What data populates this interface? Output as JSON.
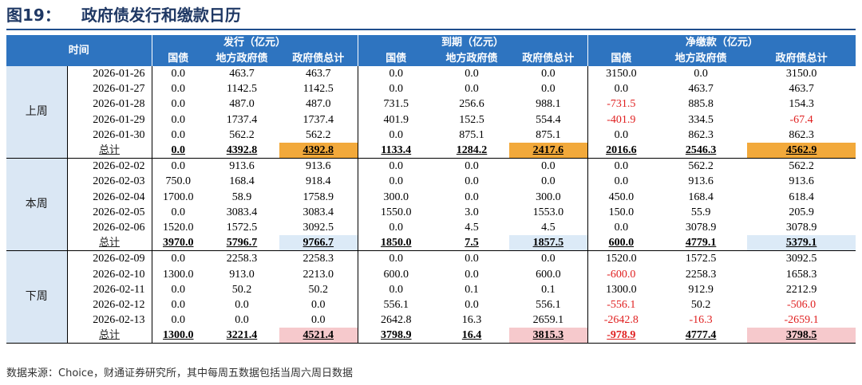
{
  "figure": {
    "number": "图19：",
    "title": "政府债发行和缴款日历"
  },
  "header": {
    "time": "时间",
    "groups": [
      "发行（亿元）",
      "到期（亿元）",
      "净缴款（亿元）"
    ],
    "sub": [
      "国债",
      "地方政府债",
      "政府债总计"
    ]
  },
  "colors": {
    "header_bg": "#2e74c0",
    "period_bg": "#dae7f4",
    "neg_text": "#e02020",
    "hl_orange": "#f2a93b",
    "hl_blue": "#dceaf7",
    "hl_pink": "#f6c9cc"
  },
  "weeks": [
    {
      "label": "上周",
      "rows": [
        [
          "2026-01-26",
          "0.0",
          "463.7",
          "463.7",
          "0.0",
          "0.0",
          "0.0",
          "3150.0",
          "0.0",
          "3150.0"
        ],
        [
          "2026-01-27",
          "0.0",
          "1142.5",
          "1142.5",
          "0.0",
          "0.0",
          "0.0",
          "0.0",
          "463.7",
          "463.7"
        ],
        [
          "2026-01-28",
          "0.0",
          "487.0",
          "487.0",
          "731.5",
          "256.6",
          "988.1",
          "-731.5",
          "885.8",
          "154.3"
        ],
        [
          "2026-01-29",
          "0.0",
          "1737.4",
          "1737.4",
          "401.9",
          "152.5",
          "554.4",
          "-401.9",
          "334.5",
          "-67.4"
        ],
        [
          "2026-01-30",
          "0.0",
          "562.2",
          "562.2",
          "0.0",
          "875.1",
          "875.1",
          "0.0",
          "862.3",
          "862.3"
        ]
      ],
      "total": [
        "总计",
        "0.0",
        "4392.8",
        "4392.8",
        "1133.4",
        "1284.2",
        "2417.6",
        "2016.6",
        "2546.3",
        "4562.9"
      ]
    },
    {
      "label": "本周",
      "rows": [
        [
          "2026-02-02",
          "0.0",
          "913.6",
          "913.6",
          "0.0",
          "0.0",
          "0.0",
          "0.0",
          "562.2",
          "562.2"
        ],
        [
          "2026-02-03",
          "750.0",
          "168.4",
          "918.4",
          "0.0",
          "0.0",
          "0.0",
          "0.0",
          "913.6",
          "913.6"
        ],
        [
          "2026-02-04",
          "1700.0",
          "58.9",
          "1758.9",
          "300.0",
          "0.0",
          "300.0",
          "450.0",
          "168.4",
          "618.4"
        ],
        [
          "2026-02-05",
          "0.0",
          "3083.4",
          "3083.4",
          "1550.0",
          "3.0",
          "1553.0",
          "150.0",
          "55.9",
          "205.9"
        ],
        [
          "2026-02-06",
          "1520.0",
          "1572.5",
          "3092.5",
          "0.0",
          "4.5",
          "4.5",
          "0.0",
          "3078.9",
          "3078.9"
        ]
      ],
      "total": [
        "总计",
        "3970.0",
        "5796.7",
        "9766.7",
        "1850.0",
        "7.5",
        "1857.5",
        "600.0",
        "4779.1",
        "5379.1"
      ]
    },
    {
      "label": "下周",
      "rows": [
        [
          "2026-02-09",
          "0.0",
          "2258.3",
          "2258.3",
          "0.0",
          "0.0",
          "0.0",
          "1520.0",
          "1572.5",
          "3092.5"
        ],
        [
          "2026-02-10",
          "1300.0",
          "913.0",
          "2213.0",
          "600.0",
          "0.0",
          "600.0",
          "-600.0",
          "2258.3",
          "1658.3"
        ],
        [
          "2026-02-11",
          "0.0",
          "50.2",
          "50.2",
          "0.0",
          "0.1",
          "0.1",
          "1300.0",
          "912.9",
          "2212.9"
        ],
        [
          "2026-02-12",
          "0.0",
          "0.0",
          "0.0",
          "556.1",
          "0.0",
          "556.1",
          "-556.1",
          "50.2",
          "-506.0"
        ],
        [
          "2026-02-13",
          "0.0",
          "0.0",
          "0.0",
          "2642.8",
          "16.3",
          "2659.1",
          "-2642.8",
          "-16.3",
          "-2659.1"
        ]
      ],
      "total": [
        "总计",
        "1300.0",
        "3221.4",
        "4521.4",
        "3798.9",
        "16.4",
        "3815.3",
        "-978.9",
        "4777.4",
        "3798.5"
      ]
    }
  ],
  "footnote": "数据来源：Choice，财通证券研究所，其中每周五数据包括当周六周日数据"
}
